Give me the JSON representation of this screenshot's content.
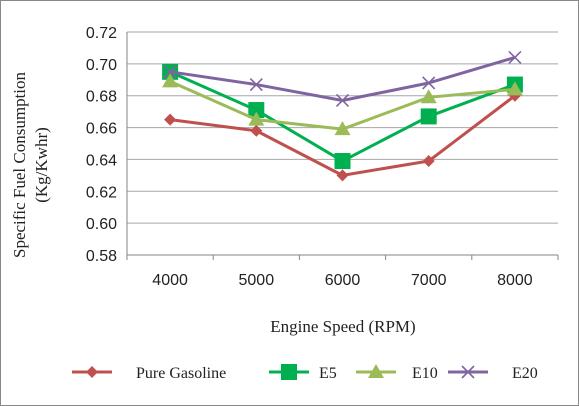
{
  "chart_data": {
    "type": "line",
    "title": "",
    "xlabel": "Engine Speed (RPM)",
    "ylabel_line1": "Specific Fuel Consumption",
    "ylabel_line2": "(Kg/Kwhr)",
    "categories": [
      "4000",
      "5000",
      "6000",
      "7000",
      "8000"
    ],
    "ylim": [
      0.58,
      0.72
    ],
    "yticks": [
      "0.58",
      "0.60",
      "0.62",
      "0.64",
      "0.66",
      "0.68",
      "0.70",
      "0.72"
    ],
    "grid": "horizontal",
    "legend_position": "bottom",
    "series": [
      {
        "name": "Pure Gasoline",
        "color": "#c0504d",
        "marker": "diamond",
        "values": [
          0.665,
          0.658,
          0.63,
          0.639,
          0.68
        ]
      },
      {
        "name": "E5",
        "color": "#00b050",
        "marker": "square",
        "values": [
          0.695,
          0.671,
          0.639,
          0.667,
          0.687
        ]
      },
      {
        "name": "E10",
        "color": "#9bbb59",
        "marker": "triangle",
        "values": [
          0.689,
          0.665,
          0.659,
          0.679,
          0.684
        ]
      },
      {
        "name": "E20",
        "color": "#8064a2",
        "marker": "x",
        "values": [
          0.695,
          0.687,
          0.677,
          0.688,
          0.704
        ]
      }
    ]
  }
}
